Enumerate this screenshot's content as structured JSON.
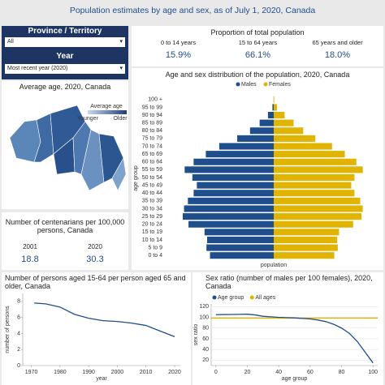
{
  "title": "Population estimates by age and sex, as of July 1, 2020, Canada",
  "filters": [
    {
      "label": "Province / Territory",
      "value": "All"
    },
    {
      "label": "Year",
      "value": "Most recent year (2020)"
    }
  ],
  "proportion": {
    "title": "Proportion of total population",
    "items": [
      {
        "label": "0 to 14 years",
        "value": "15.9%"
      },
      {
        "label": "15 to 64 years",
        "value": "66.1%"
      },
      {
        "label": "65 years and older",
        "value": "18.0%"
      }
    ]
  },
  "average_age": {
    "title": "Average age, 2020, Canada",
    "legend_title": "Average age",
    "low": "Younger",
    "high": "Older"
  },
  "centenarians": {
    "title": "Number of centenarians per 100,000 persons, Canada",
    "items": [
      {
        "year": "2001",
        "value": "18.8"
      },
      {
        "year": "2020",
        "value": "30.3"
      }
    ]
  },
  "chart_data": [
    {
      "type": "pyramid",
      "title": "Age and sex distribution of the population, 2020, Canada",
      "x_label": "population",
      "y_label": "age group",
      "categories": [
        "0 to 4",
        "5 to 9",
        "10 to 14",
        "15 to 19",
        "20 to 24",
        "25 to 29",
        "30 to 34",
        "35 to 39",
        "40 to 44",
        "45 to 49",
        "50 to 54",
        "55 to 59",
        "60 to 64",
        "65 to 69",
        "70 to 74",
        "75 to 79",
        "80 to 84",
        "85 to 89",
        "90 to 94",
        "95 to 99",
        "100 +"
      ],
      "series": [
        {
          "name": "Males",
          "color": "#1f4e8c",
          "values": [
            995000,
            1050000,
            1040000,
            1080000,
            1330000,
            1420000,
            1400000,
            1340000,
            1250000,
            1200000,
            1270000,
            1390000,
            1250000,
            1060000,
            850000,
            570000,
            370000,
            220000,
            90000,
            20000,
            2000
          ]
        },
        {
          "name": "Females",
          "color": "#e0b400",
          "values": [
            945000,
            1000000,
            990000,
            1020000,
            1240000,
            1370000,
            1390000,
            1350000,
            1260000,
            1210000,
            1260000,
            1390000,
            1290000,
            1110000,
            910000,
            650000,
            460000,
            310000,
            170000,
            50000,
            8000
          ]
        }
      ]
    },
    {
      "type": "line",
      "title": "Number of persons aged 15-64 per person aged 65 and older, Canada",
      "x_label": "year",
      "y_label": "number of persons",
      "x": [
        1971,
        1975,
        1980,
        1985,
        1990,
        1995,
        2000,
        2005,
        2010,
        2015,
        2020
      ],
      "series": [
        {
          "color": "#1f4e8c",
          "values": [
            7.8,
            7.7,
            7.3,
            6.4,
            5.9,
            5.6,
            5.5,
            5.3,
            5.0,
            4.3,
            3.6
          ]
        }
      ],
      "xlim": [
        1967,
        2022
      ],
      "xticks": [
        1970,
        1980,
        1990,
        2000,
        2010,
        2020
      ],
      "ylim": [
        0,
        9
      ],
      "yticks": [
        0,
        2,
        4,
        6,
        8
      ],
      "grid": false
    },
    {
      "type": "line",
      "title": "Sex ratio (number of males per 100 females), 2020, Canada",
      "x_label": "age group",
      "y_label": "sex ratio",
      "x": [
        0,
        5,
        10,
        15,
        20,
        25,
        30,
        35,
        40,
        45,
        50,
        55,
        60,
        65,
        70,
        75,
        80,
        85,
        90,
        95,
        100
      ],
      "series": [
        {
          "name": "Age group",
          "color": "#1f4e8c",
          "values": [
            105,
            105.2,
            105.3,
            105.5,
            106,
            104.5,
            102,
            101,
            100,
            99.5,
            99,
            98,
            97,
            95,
            92,
            87,
            80,
            70,
            55,
            35,
            15
          ]
        }
      ],
      "reference": {
        "name": "All ages",
        "color": "#e0b400",
        "value": 98.6
      },
      "xlim": [
        -3,
        103
      ],
      "xticks": [
        0,
        20,
        40,
        60,
        80,
        100
      ],
      "ylim": [
        10,
        125
      ],
      "yticks": [
        20,
        40,
        60,
        80,
        100,
        120
      ],
      "grid": true
    }
  ]
}
